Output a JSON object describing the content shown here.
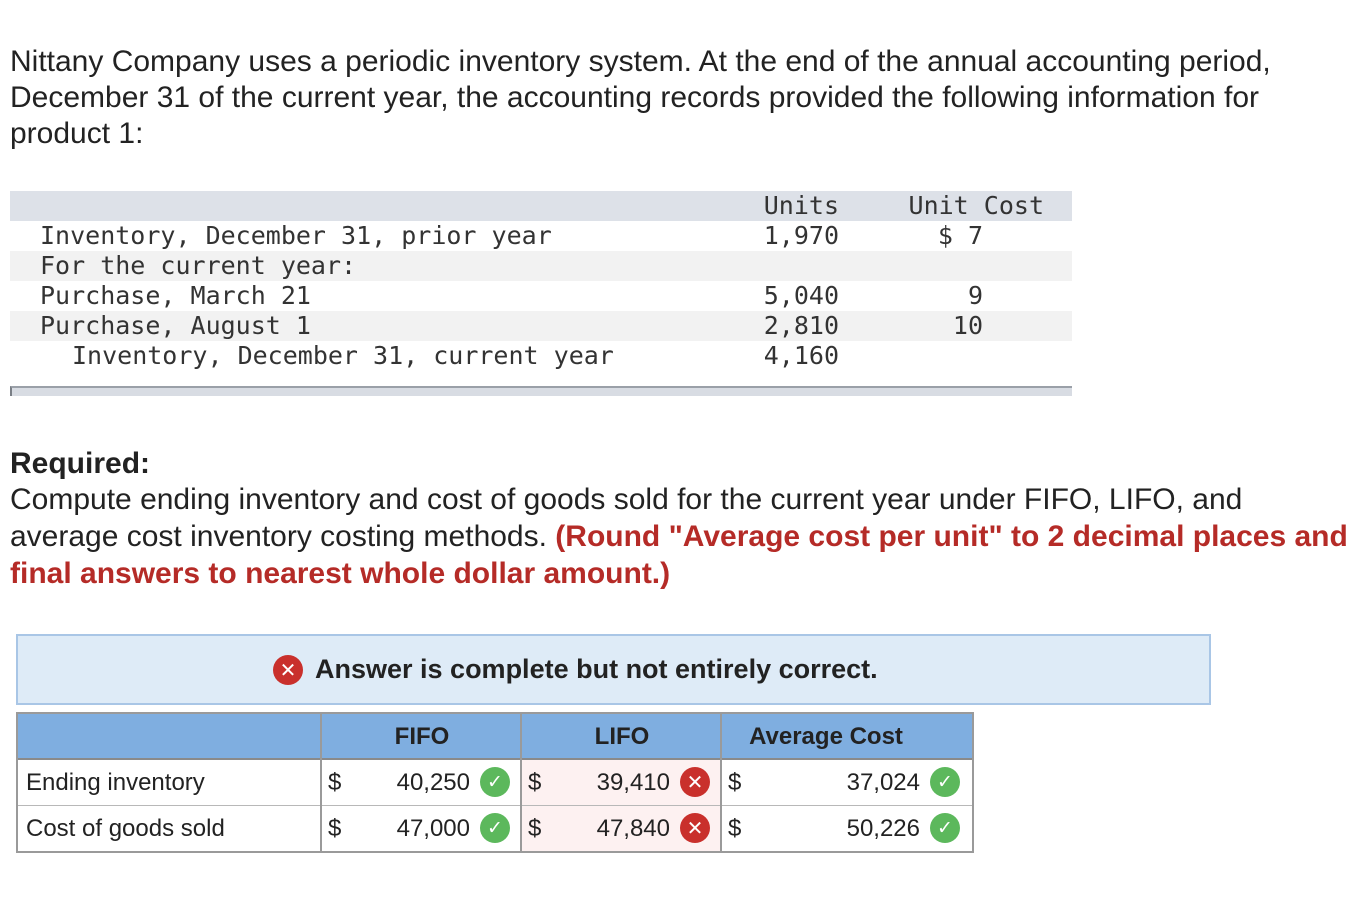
{
  "intro": "Nittany Company uses a periodic inventory system. At the end of the annual accounting period, December 31 of the current year, the accounting records provided the following information for product 1:",
  "data_table": {
    "headers": {
      "units": "Units",
      "unit_cost": "Unit Cost"
    },
    "rows": [
      {
        "label": "Inventory, December 31, prior year",
        "units": "1,970",
        "unit_cost": "$ 7"
      },
      {
        "label": "For the current year:",
        "units": "",
        "unit_cost": ""
      },
      {
        "label": "Purchase, March 21",
        "units": "5,040",
        "unit_cost": "9"
      },
      {
        "label": "Purchase, August 1",
        "units": "2,810",
        "unit_cost": "10"
      },
      {
        "label": "Inventory, December 31, current year",
        "units": "4,160",
        "unit_cost": ""
      }
    ]
  },
  "required": {
    "heading": "Required:",
    "text": "Compute ending inventory and cost of goods sold for the current year under FIFO, LIFO, and average cost inventory costing methods.",
    "note": "(Round \"Average cost per unit\" to 2 decimal places and final answers to nearest whole dollar amount.)"
  },
  "banner": {
    "text": "Answer is complete but not entirely correct."
  },
  "answer_table": {
    "columns": [
      "FIFO",
      "LIFO",
      "Average Cost"
    ],
    "currency_symbol": "$",
    "rows": [
      {
        "label": "Ending inventory",
        "fifo": "40,250",
        "fifo_status": "correct",
        "lifo": "39,410",
        "lifo_status": "incorrect",
        "avg": "37,024",
        "avg_status": "correct"
      },
      {
        "label": "Cost of goods sold",
        "fifo": "47,000",
        "fifo_status": "correct",
        "lifo": "47,840",
        "lifo_status": "incorrect",
        "avg": "50,226",
        "avg_status": "correct"
      }
    ]
  },
  "colors": {
    "incorrect": "#c9302c",
    "correct": "#5cb85c",
    "note_red": "#b52b27",
    "header_blue": "#7faee0",
    "banner_bg": "#deebf7"
  },
  "icons": {
    "correct": "check-icon",
    "incorrect": "x-icon"
  }
}
